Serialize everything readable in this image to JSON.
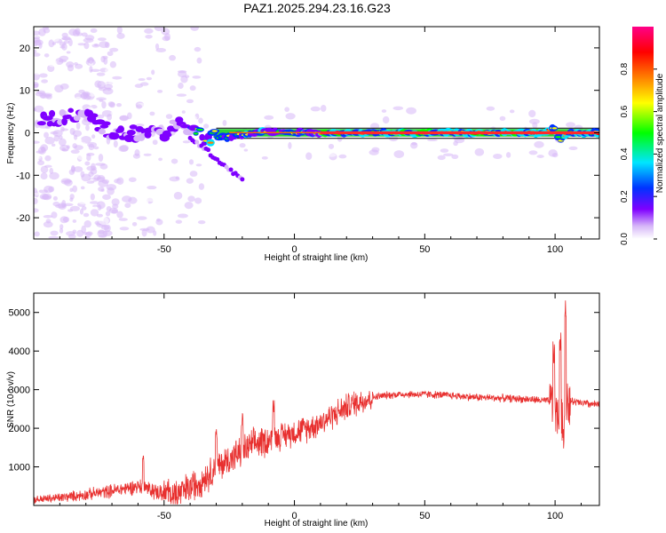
{
  "chart_data": [
    {
      "type": "heatmap",
      "title": "PAZ1.2025.294.23.16.G23",
      "xlabel": "Height of straight line (km)",
      "ylabel": "Frequency (Hz)",
      "xlim": [
        -100,
        117
      ],
      "ylim": [
        -25,
        25
      ],
      "xticks": [
        -50,
        0,
        50,
        100
      ],
      "yticks": [
        -20,
        -10,
        0,
        10,
        20
      ],
      "colorbar": {
        "label": "Normalized spectral amplitude",
        "range": [
          0,
          1
        ],
        "ticks": [
          "0.0",
          "0.2",
          "0.4",
          "0.6",
          "0.8"
        ],
        "colors": [
          "#ffffff",
          "#d7b8f8",
          "#7f00ff",
          "#0033ff",
          "#00e5ff",
          "#00ff00",
          "#ffff00",
          "#ff8000",
          "#ff0000",
          "#ff0088"
        ]
      },
      "track": {
        "description_points_x": [
          -97,
          -85,
          -80,
          -75,
          -70,
          -60,
          -50,
          -45,
          -40,
          -35,
          -30,
          -25,
          -20,
          -15,
          -10,
          -5,
          0,
          5,
          10,
          20,
          50,
          75,
          95,
          100,
          102,
          105,
          117
        ],
        "description_points_freq": [
          3,
          4,
          5,
          2,
          0,
          0,
          0,
          2,
          0,
          -1,
          -1,
          -1,
          -0.5,
          0,
          0.5,
          0,
          0,
          0,
          0,
          0,
          0,
          0,
          0,
          1,
          -2,
          0,
          0
        ]
      }
    },
    {
      "type": "line",
      "xlabel": "Height of straight line (km)",
      "ylabel": "SNR (10 * v/v)",
      "xlim": [
        -100,
        117
      ],
      "ylim": [
        0,
        5500
      ],
      "xticks": [
        -50,
        0,
        50,
        100
      ],
      "yticks": [
        1000,
        2000,
        3000,
        4000,
        5000
      ],
      "color": "#e8302f",
      "trend": {
        "x": [
          -100,
          -90,
          -80,
          -70,
          -60,
          -50,
          -45,
          -40,
          -35,
          -30,
          -25,
          -20,
          -15,
          -10,
          -5,
          0,
          5,
          10,
          15,
          20,
          25,
          30,
          35,
          40,
          50,
          60,
          70,
          80,
          90,
          98,
          100,
          101,
          102,
          103,
          104,
          105,
          110,
          117
        ],
        "y": [
          150,
          200,
          280,
          380,
          500,
          300,
          280,
          450,
          700,
          950,
          1200,
          1400,
          1600,
          1700,
          1800,
          1900,
          2000,
          2150,
          2350,
          2550,
          2700,
          2800,
          2850,
          2880,
          2880,
          2850,
          2800,
          2780,
          2750,
          2700,
          2600,
          2200,
          2500,
          1800,
          3000,
          2700,
          2650,
          2600
        ]
      },
      "spikes": [
        {
          "x": -58,
          "y": 1300
        },
        {
          "x": -30,
          "y": 2000
        },
        {
          "x": -20,
          "y": 2400
        },
        {
          "x": -8,
          "y": 2750
        },
        {
          "x": 99.5,
          "y": 4300
        },
        {
          "x": 102,
          "y": 4500
        },
        {
          "x": 104,
          "y": 5500
        }
      ]
    }
  ]
}
